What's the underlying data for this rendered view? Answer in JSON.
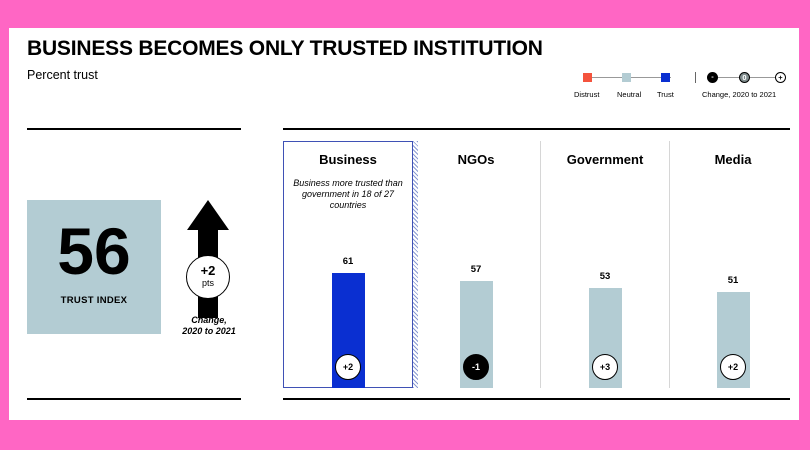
{
  "header": {
    "title": "BUSINESS BECOMES ONLY TRUSTED INSTITUTION",
    "subtitle": "Percent trust"
  },
  "legend": {
    "items": [
      {
        "label": "Distrust",
        "color": "#f4533d"
      },
      {
        "label": "Neutral",
        "color": "#b3ccd3"
      },
      {
        "label": "Trust",
        "color": "#0a2fd1"
      }
    ],
    "change_symbols": [
      "-",
      "0",
      "+"
    ],
    "change_label": "Change, 2020 to 2021"
  },
  "trust_index": {
    "value": "56",
    "label": "TRUST INDEX",
    "change_value": "+2",
    "change_unit": "pts",
    "change_label_line1": "Change,",
    "change_label_line2": "2020 to 2021"
  },
  "colors": {
    "business_bar": "#0a2fd1",
    "other_bar": "#b3ccd3",
    "index_box": "#b3ccd3",
    "background": "#ff66c4"
  },
  "chart_data": {
    "type": "bar",
    "categories": [
      "Business",
      "NGOs",
      "Government",
      "Media"
    ],
    "values": [
      61,
      57,
      53,
      51
    ],
    "changes": [
      "+2",
      "-1",
      "+3",
      "+2"
    ],
    "highlight_index": 0,
    "annotation": "Business more trusted than government in 18 of 27 countries",
    "ylim": [
      0,
      100
    ]
  }
}
